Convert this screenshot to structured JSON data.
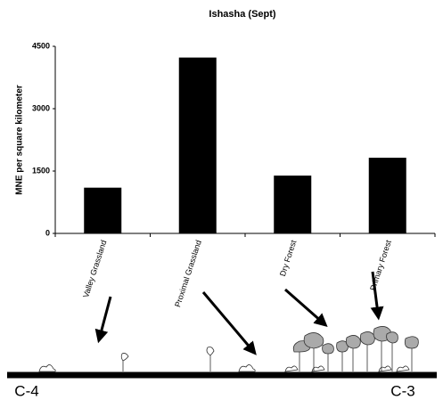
{
  "chart_data": {
    "type": "bar",
    "title": "Ishasha (Sept)",
    "y_label": "MNE per square kilometer",
    "categories": [
      "Valley Grassland",
      "Proximal Grassland",
      "Dry Forest",
      "Primary Forest"
    ],
    "values": [
      1100,
      4230,
      1390,
      1820
    ],
    "color": "#000000",
    "ylim": [
      0,
      4500
    ],
    "yticks": [
      0,
      1500,
      3000,
      4500
    ],
    "grid": false,
    "annotations": [
      "C-4",
      "C-3"
    ]
  }
}
